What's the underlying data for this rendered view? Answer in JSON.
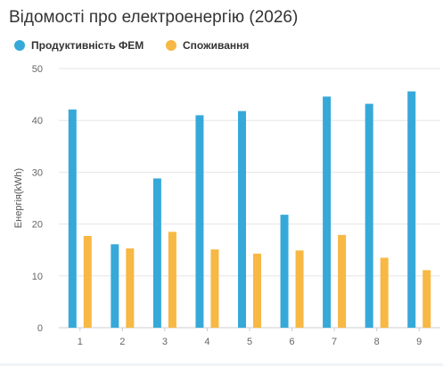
{
  "chart_data": {
    "type": "bar",
    "title": "Відомості про електроенергію (2026)",
    "ylabel": "Енергія(kWh)",
    "xlabel": "",
    "categories": [
      "1",
      "2",
      "3",
      "4",
      "5",
      "6",
      "7",
      "8",
      "9"
    ],
    "series": [
      {
        "name": "Продуктивність ФЕМ",
        "color": "#36a9d9",
        "values": [
          42.1,
          16.1,
          28.8,
          41.0,
          41.8,
          21.8,
          44.6,
          43.2,
          45.6
        ]
      },
      {
        "name": "Споживання",
        "color": "#f7b844",
        "values": [
          17.7,
          15.3,
          18.5,
          15.1,
          14.3,
          14.9,
          17.9,
          13.5,
          11.1
        ]
      }
    ],
    "ylim": [
      0,
      50
    ],
    "yticks": [
      "0",
      "10",
      "20",
      "30",
      "40",
      "50"
    ],
    "grid": true,
    "legend_position": "top-left"
  }
}
